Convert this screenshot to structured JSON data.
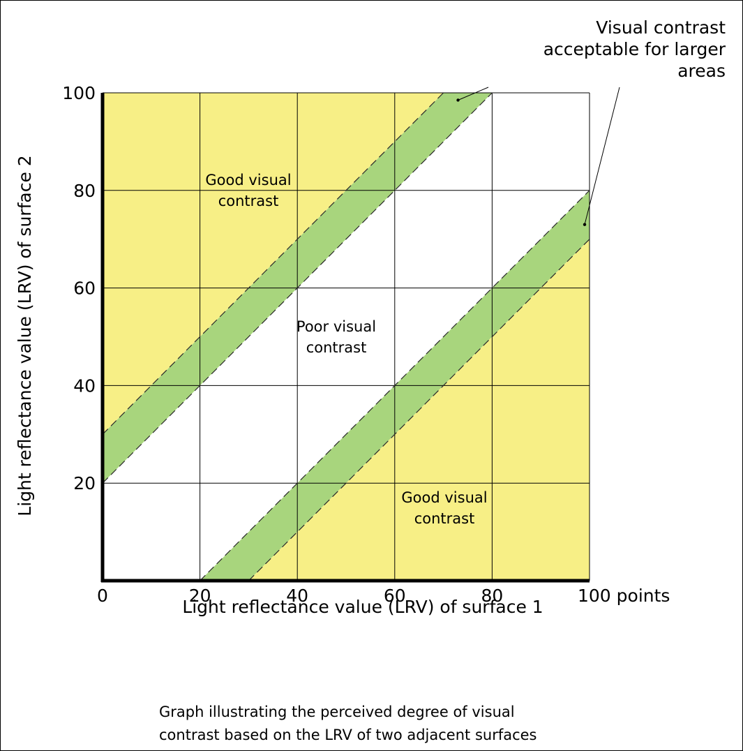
{
  "caption": {
    "line1": "Graph illustrating the perceived degree of visual",
    "line2": "contrast based on the LRV of two adjacent surfaces"
  },
  "chart_data": {
    "type": "area",
    "xlabel": "Light reflectance value (LRV) of surface 1",
    "ylabel": "Light reflectance value (LRV) of surface 2",
    "xlim": [
      0,
      100
    ],
    "ylim": [
      0,
      100
    ],
    "x_ticks": [
      "0",
      "20",
      "40",
      "60",
      "80",
      "100 points"
    ],
    "y_ticks": [
      "20",
      "40",
      "60",
      "80",
      "100"
    ],
    "grid": true,
    "regions": [
      {
        "label_lines": [
          "Good visual",
          "contrast"
        ],
        "fill": "#f7ef86",
        "boundary": "y >= x + 30",
        "label_at": [
          20,
          80
        ]
      },
      {
        "label_lines": [],
        "fill": "#a8d57d",
        "boundary": "x + 20 <= y <= x + 30"
      },
      {
        "label_lines": [
          "Poor visual",
          "contrast"
        ],
        "fill": "#ffffff",
        "boundary": "x - 20 <= y <= x + 20",
        "label_at": [
          50,
          50
        ]
      },
      {
        "label_lines": [],
        "fill": "#a8d57d",
        "boundary": "x - 30 <= y <= x - 20"
      },
      {
        "label_lines": [
          "Good visual",
          "contrast"
        ],
        "fill": "#f7ef86",
        "boundary": "y <= x - 30",
        "label_at": [
          80,
          20
        ]
      }
    ],
    "boundary_lines": [
      {
        "offset": 30
      },
      {
        "offset": 20
      },
      {
        "offset": -20
      },
      {
        "offset": -30
      }
    ],
    "annotation": {
      "lines": [
        "Visual contrast",
        "acceptable for larger",
        "areas"
      ],
      "points": [
        [
          73,
          98.5
        ],
        [
          99,
          73
        ]
      ]
    }
  }
}
